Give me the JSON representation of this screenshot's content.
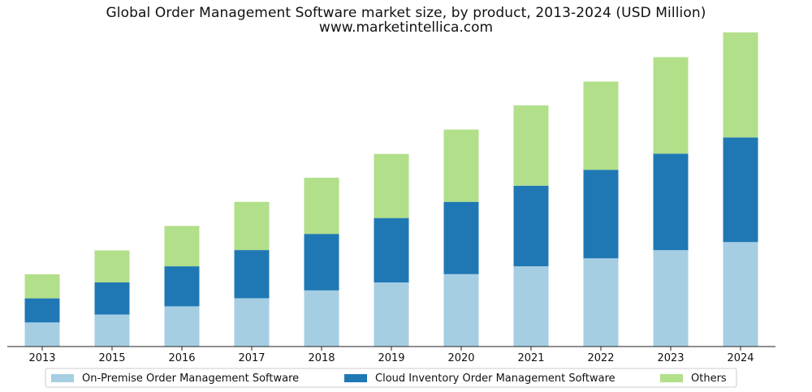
{
  "chart_data": {
    "type": "bar",
    "stacked": true,
    "title": "Global Order Management Software market size, by product, 2013-2024 (USD Million)",
    "subtitle": "www.marketintellica.com",
    "xlabel": "",
    "ylabel": "",
    "y_axis_visible": false,
    "grid": false,
    "legend_position": "bottom",
    "ylim": [
      0,
      100
    ],
    "categories": [
      "2013",
      "2015",
      "2016",
      "2017",
      "2018",
      "2019",
      "2020",
      "2021",
      "2022",
      "2023",
      "2024"
    ],
    "series": [
      {
        "name": "On-Premise Order Management Software",
        "color": "#a6cee3",
        "values": [
          7.6,
          10.1,
          12.7,
          15.2,
          17.7,
          20.2,
          22.8,
          25.3,
          27.8,
          30.4,
          32.9
        ]
      },
      {
        "name": "Cloud Inventory Order Management Software",
        "color": "#1f78b4",
        "values": [
          7.6,
          10.1,
          12.6,
          15.2,
          17.8,
          20.3,
          22.8,
          25.4,
          27.9,
          30.4,
          33.0
        ]
      },
      {
        "name": "Others",
        "color": "#b2df8a",
        "values": [
          7.6,
          10.1,
          12.7,
          15.2,
          17.7,
          20.2,
          22.8,
          25.3,
          27.8,
          30.4,
          33.1
        ]
      }
    ]
  }
}
